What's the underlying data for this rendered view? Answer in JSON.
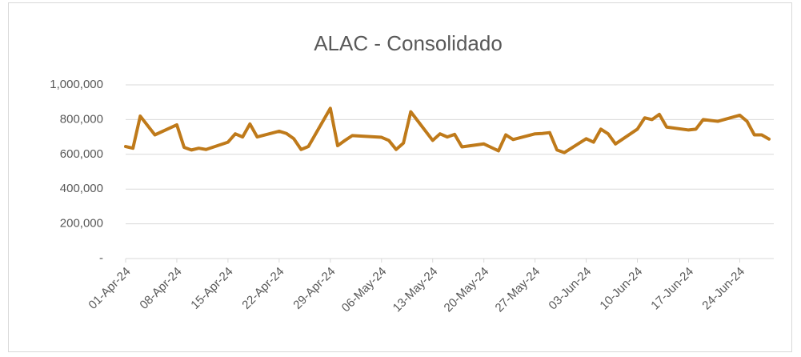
{
  "chart_data": {
    "type": "line",
    "title": "ALAC - Consolidado",
    "x": [
      "01-Apr-24",
      "02-Apr-24",
      "03-Apr-24",
      "05-Apr-24",
      "08-Apr-24",
      "09-Apr-24",
      "10-Apr-24",
      "11-Apr-24",
      "12-Apr-24",
      "15-Apr-24",
      "16-Apr-24",
      "17-Apr-24",
      "18-Apr-24",
      "19-Apr-24",
      "22-Apr-24",
      "23-Apr-24",
      "24-Apr-24",
      "25-Apr-24",
      "26-Apr-24",
      "29-Apr-24",
      "30-Apr-24",
      "01-May-24",
      "02-May-24",
      "06-May-24",
      "07-May-24",
      "08-May-24",
      "09-May-24",
      "10-May-24",
      "13-May-24",
      "14-May-24",
      "15-May-24",
      "16-May-24",
      "17-May-24",
      "20-May-24",
      "21-May-24",
      "22-May-24",
      "23-May-24",
      "24-May-24",
      "27-May-24",
      "28-May-24",
      "29-May-24",
      "30-May-24",
      "31-May-24",
      "03-Jun-24",
      "04-Jun-24",
      "05-Jun-24",
      "06-Jun-24",
      "07-Jun-24",
      "10-Jun-24",
      "11-Jun-24",
      "12-Jun-24",
      "13-Jun-24",
      "14-Jun-24",
      "17-Jun-24",
      "18-Jun-24",
      "19-Jun-24",
      "20-Jun-24",
      "21-Jun-24",
      "24-Jun-24",
      "25-Jun-24",
      "26-Jun-24",
      "27-Jun-24",
      "28-Jun-24"
    ],
    "series": [
      {
        "name": "ALAC - Consolidado",
        "color": "#bf7a1a",
        "values": [
          645000,
          635000,
          820000,
          712000,
          770000,
          640000,
          625000,
          635000,
          628000,
          670000,
          718000,
          700000,
          775000,
          700000,
          733000,
          720000,
          690000,
          628000,
          645000,
          865000,
          650000,
          680000,
          708000,
          698000,
          680000,
          628000,
          665000,
          845000,
          680000,
          718000,
          700000,
          715000,
          643000,
          660000,
          640000,
          620000,
          712000,
          685000,
          718000,
          720000,
          725000,
          625000,
          610000,
          690000,
          670000,
          745000,
          718000,
          660000,
          745000,
          810000,
          800000,
          830000,
          757000,
          740000,
          745000,
          800000,
          795000,
          790000,
          825000,
          790000,
          712000,
          712000,
          688000
        ]
      }
    ],
    "xlim": [
      "01-Apr-24",
      "28-Jun-24"
    ],
    "xticks": [
      "01-Apr-24",
      "08-Apr-24",
      "15-Apr-24",
      "22-Apr-24",
      "29-Apr-24",
      "06-May-24",
      "13-May-24",
      "20-May-24",
      "27-May-24",
      "03-Jun-24",
      "10-Jun-24",
      "17-Jun-24",
      "24-Jun-24"
    ],
    "ylim": [
      0,
      1000000
    ],
    "yticks": [
      {
        "value": 0,
        "label": "-"
      },
      {
        "value": 200000,
        "label": "200,000"
      },
      {
        "value": 400000,
        "label": "400,000"
      },
      {
        "value": 600000,
        "label": "600,000"
      },
      {
        "value": 800000,
        "label": "800,000"
      },
      {
        "value": 1000000,
        "label": "1,000,000"
      }
    ],
    "grid": true
  }
}
